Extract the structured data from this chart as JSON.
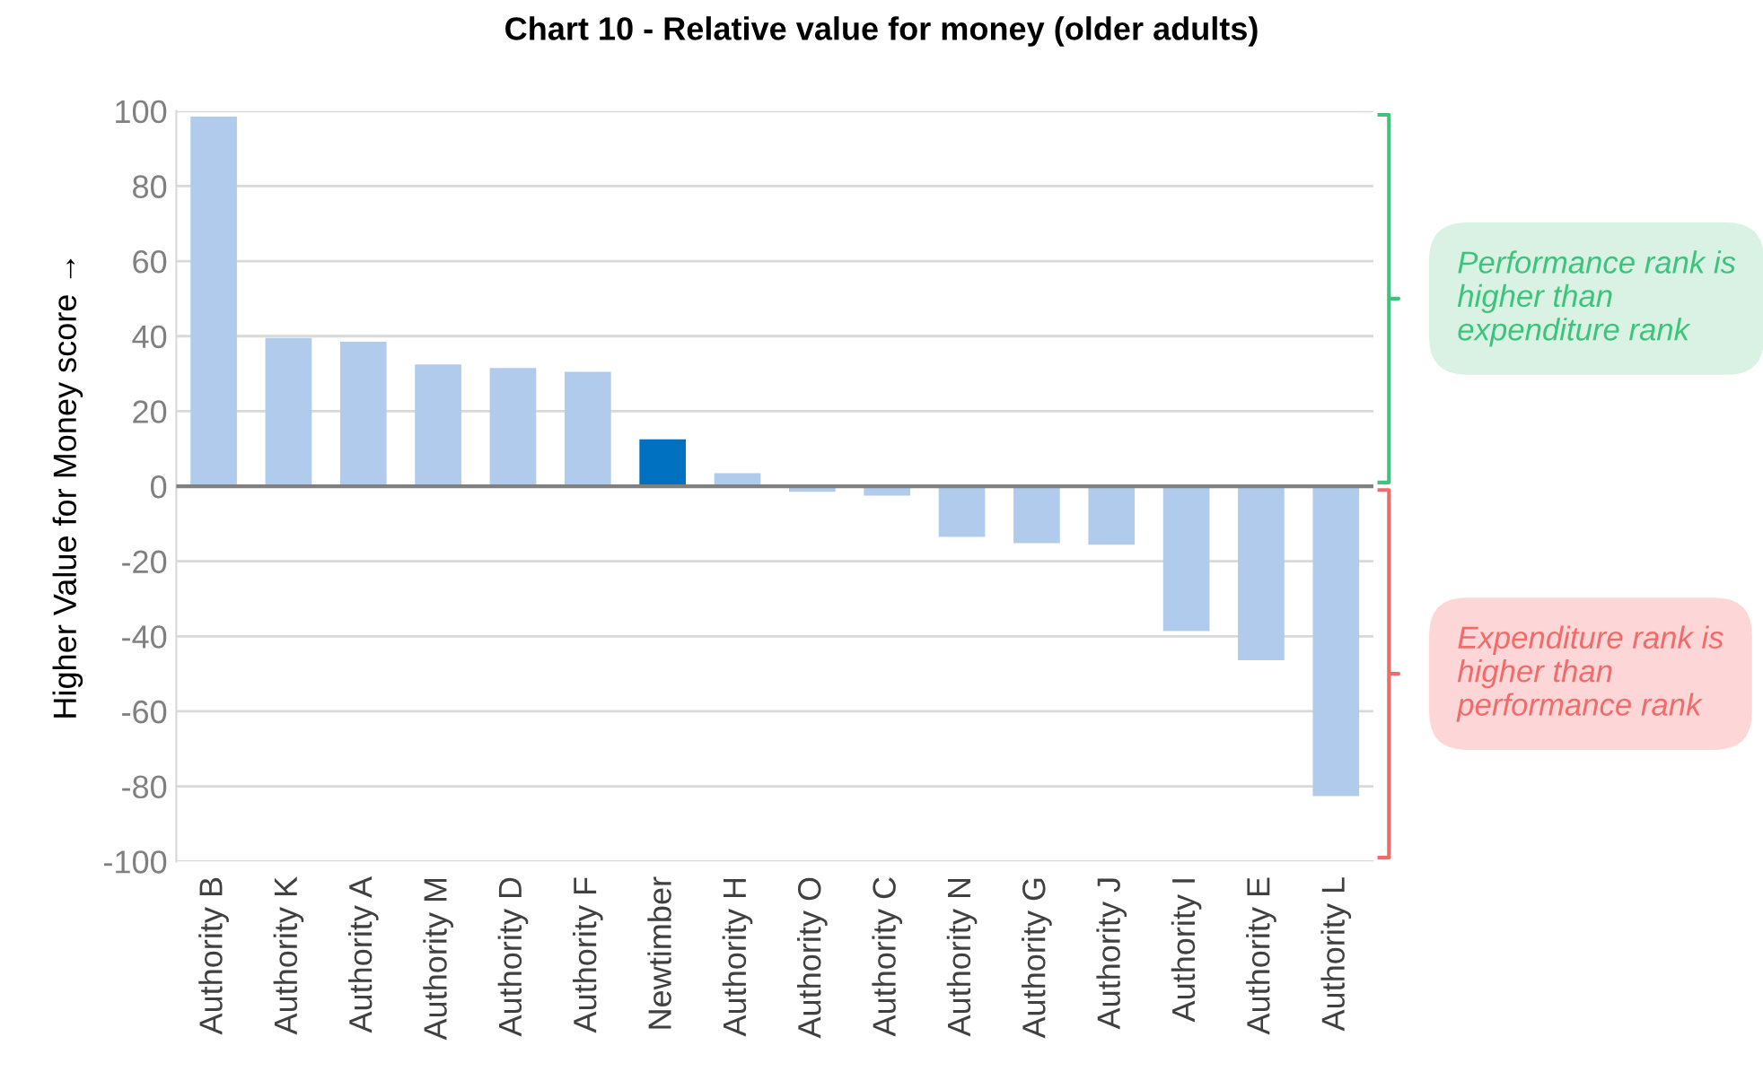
{
  "chart_data": {
    "type": "bar",
    "title": "Chart 10 - Relative value for money (older adults)",
    "ylabel": "Higher Value for Money score →",
    "categories": [
      "Authority B",
      "Authority K",
      "Authority A",
      "Authority M",
      "Authority D",
      "Authority F",
      "Newtimber",
      "Authority H",
      "Authority O",
      "Authority C",
      "Authority N",
      "Authority G",
      "Authority J",
      "Authority I",
      "Authority E",
      "Authority L"
    ],
    "values": [
      98.5,
      39.5,
      38.5,
      32.5,
      31.5,
      30.5,
      12.5,
      3.5,
      -1.5,
      -2.5,
      -13.5,
      -15.2,
      -15.6,
      -38.6,
      -46.4,
      -82.6
    ],
    "colors": [
      "#b0cbec",
      "#b0cbec",
      "#b0cbec",
      "#b0cbec",
      "#b0cbec",
      "#b0cbec",
      "#0070c0",
      "#b0cbec",
      "#b0cbec",
      "#b0cbec",
      "#b0cbec",
      "#b0cbec",
      "#b0cbec",
      "#b0cbec",
      "#b0cbec",
      "#b0cbec"
    ],
    "ylim": [
      -100,
      100
    ],
    "yticks": [
      -100,
      -80,
      -60,
      -40,
      -20,
      0,
      20,
      40,
      60,
      80,
      100
    ],
    "grid": "y",
    "annotations": [
      "Performance rank is higher than expenditure rank",
      "Expenditure rank is higher than performance rank"
    ]
  }
}
